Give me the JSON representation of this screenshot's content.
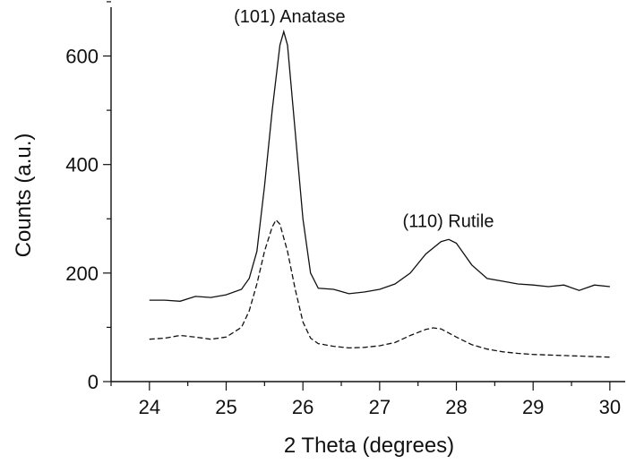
{
  "chart_data": {
    "type": "line",
    "xlabel": "2 Theta (degrees)",
    "ylabel": "Counts (a.u.)",
    "xlim": [
      23.5,
      30.2
    ],
    "ylim": [
      0,
      690
    ],
    "xticks": [
      24,
      25,
      26,
      27,
      28,
      29,
      30
    ],
    "yticks": [
      0,
      200,
      400,
      600
    ],
    "annotations": [
      {
        "text": "(101) Anatase",
        "x": 25.1,
        "y": 662
      },
      {
        "text": "(110) Rutile",
        "x": 27.3,
        "y": 285
      }
    ],
    "series": [
      {
        "style": "solid",
        "x": [
          24.0,
          24.2,
          24.4,
          24.6,
          24.8,
          25.0,
          25.2,
          25.3,
          25.4,
          25.5,
          25.6,
          25.7,
          25.75,
          25.8,
          25.9,
          26.0,
          26.1,
          26.2,
          26.4,
          26.6,
          26.8,
          27.0,
          27.2,
          27.4,
          27.6,
          27.8,
          27.9,
          28.0,
          28.2,
          28.4,
          28.6,
          28.8,
          29.0,
          29.2,
          29.4,
          29.6,
          29.8,
          30.0
        ],
        "y": [
          150,
          150,
          148,
          157,
          155,
          160,
          170,
          190,
          240,
          360,
          500,
          620,
          645,
          620,
          460,
          300,
          200,
          172,
          170,
          162,
          165,
          170,
          180,
          200,
          235,
          258,
          262,
          255,
          215,
          190,
          185,
          180,
          178,
          175,
          178,
          168,
          178,
          175
        ]
      },
      {
        "style": "dashed",
        "x": [
          24.0,
          24.2,
          24.4,
          24.6,
          24.8,
          25.0,
          25.2,
          25.3,
          25.4,
          25.5,
          25.6,
          25.65,
          25.7,
          25.8,
          25.9,
          26.0,
          26.1,
          26.2,
          26.4,
          26.6,
          26.8,
          27.0,
          27.2,
          27.4,
          27.6,
          27.7,
          27.8,
          28.0,
          28.2,
          28.4,
          28.6,
          28.8,
          29.0,
          29.2,
          29.4,
          29.6,
          29.8,
          30.0
        ],
        "y": [
          78,
          80,
          85,
          82,
          78,
          82,
          100,
          130,
          180,
          240,
          285,
          298,
          290,
          240,
          170,
          110,
          80,
          70,
          65,
          62,
          63,
          66,
          72,
          85,
          96,
          99,
          97,
          82,
          68,
          60,
          55,
          52,
          50,
          49,
          48,
          47,
          46,
          45
        ]
      }
    ]
  }
}
